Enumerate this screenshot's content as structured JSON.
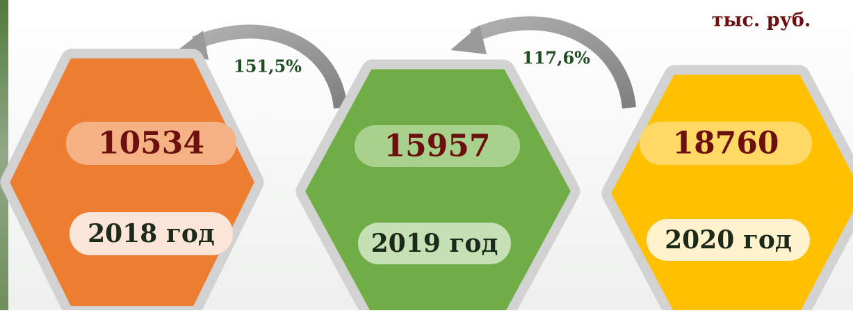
{
  "unit": "тыс. руб.",
  "items": [
    {
      "value": 10534,
      "year": "2018 год"
    },
    {
      "value": 15957,
      "year": "2019 год"
    },
    {
      "value": 18760,
      "year": "2020 год"
    }
  ],
  "growth": [
    "151,5%",
    "117,6%"
  ]
}
